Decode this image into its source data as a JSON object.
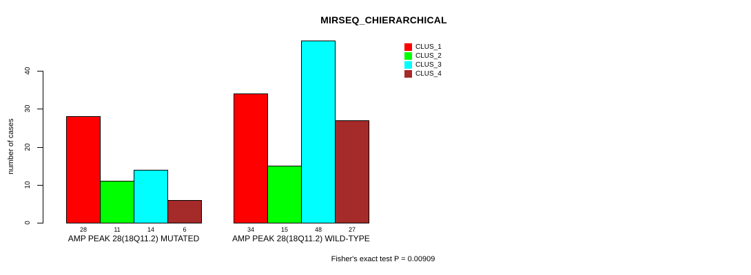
{
  "chart_data": {
    "type": "bar",
    "title": "MIRSEQ_CHIERARCHICAL",
    "xlabel": "",
    "ylabel": "number of cases",
    "axis_ticks": [
      0,
      10,
      20,
      30,
      40
    ],
    "ylim": [
      0,
      48
    ],
    "grid": false,
    "legend_position": "top-right",
    "bar_border_color": "#000000",
    "categories": [
      "AMP PEAK 28(18Q11.2) MUTATED",
      "AMP PEAK 28(18Q11.2) WILD-TYPE"
    ],
    "series": [
      {
        "name": "CLUS_1",
        "color": "#ff0000",
        "values": [
          28,
          34
        ]
      },
      {
        "name": "CLUS_2",
        "color": "#00ff00",
        "values": [
          11,
          15
        ]
      },
      {
        "name": "CLUS_3",
        "color": "#00ffff",
        "values": [
          14,
          48
        ]
      },
      {
        "name": "CLUS_4",
        "color": "#a52a2a",
        "values": [
          6,
          27
        ]
      }
    ],
    "annotation": "Fisher's exact test P = 0.00909"
  }
}
